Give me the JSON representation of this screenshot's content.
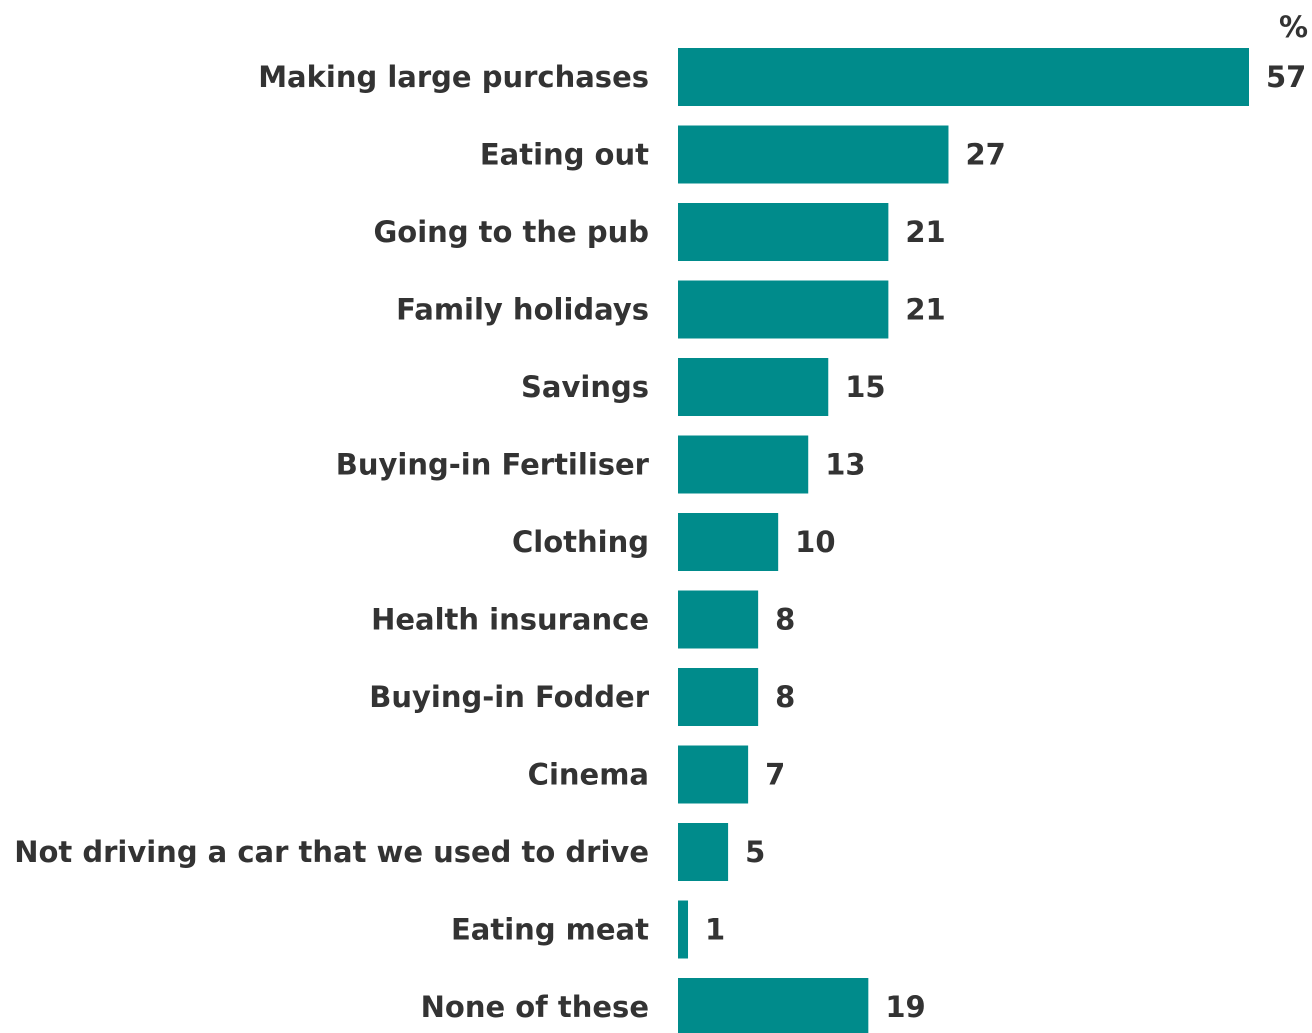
{
  "chart_data": {
    "type": "bar",
    "orientation": "horizontal",
    "unit": "%",
    "categories": [
      "Making large purchases",
      "Eating out",
      "Going to the pub",
      "Family holidays",
      "Savings",
      "Buying-in Fertiliser",
      "Clothing",
      "Health insurance",
      "Buying-in Fodder",
      "Cinema",
      "Not driving a car that we used to drive",
      "Eating meat",
      "None of these"
    ],
    "values": [
      57,
      27,
      21,
      21,
      15,
      13,
      10,
      8,
      8,
      7,
      5,
      1,
      19
    ],
    "xlim": [
      0,
      57
    ],
    "grid": false,
    "legend": "none",
    "colors": {
      "bar": "#008B8B",
      "text": "#333333"
    }
  }
}
